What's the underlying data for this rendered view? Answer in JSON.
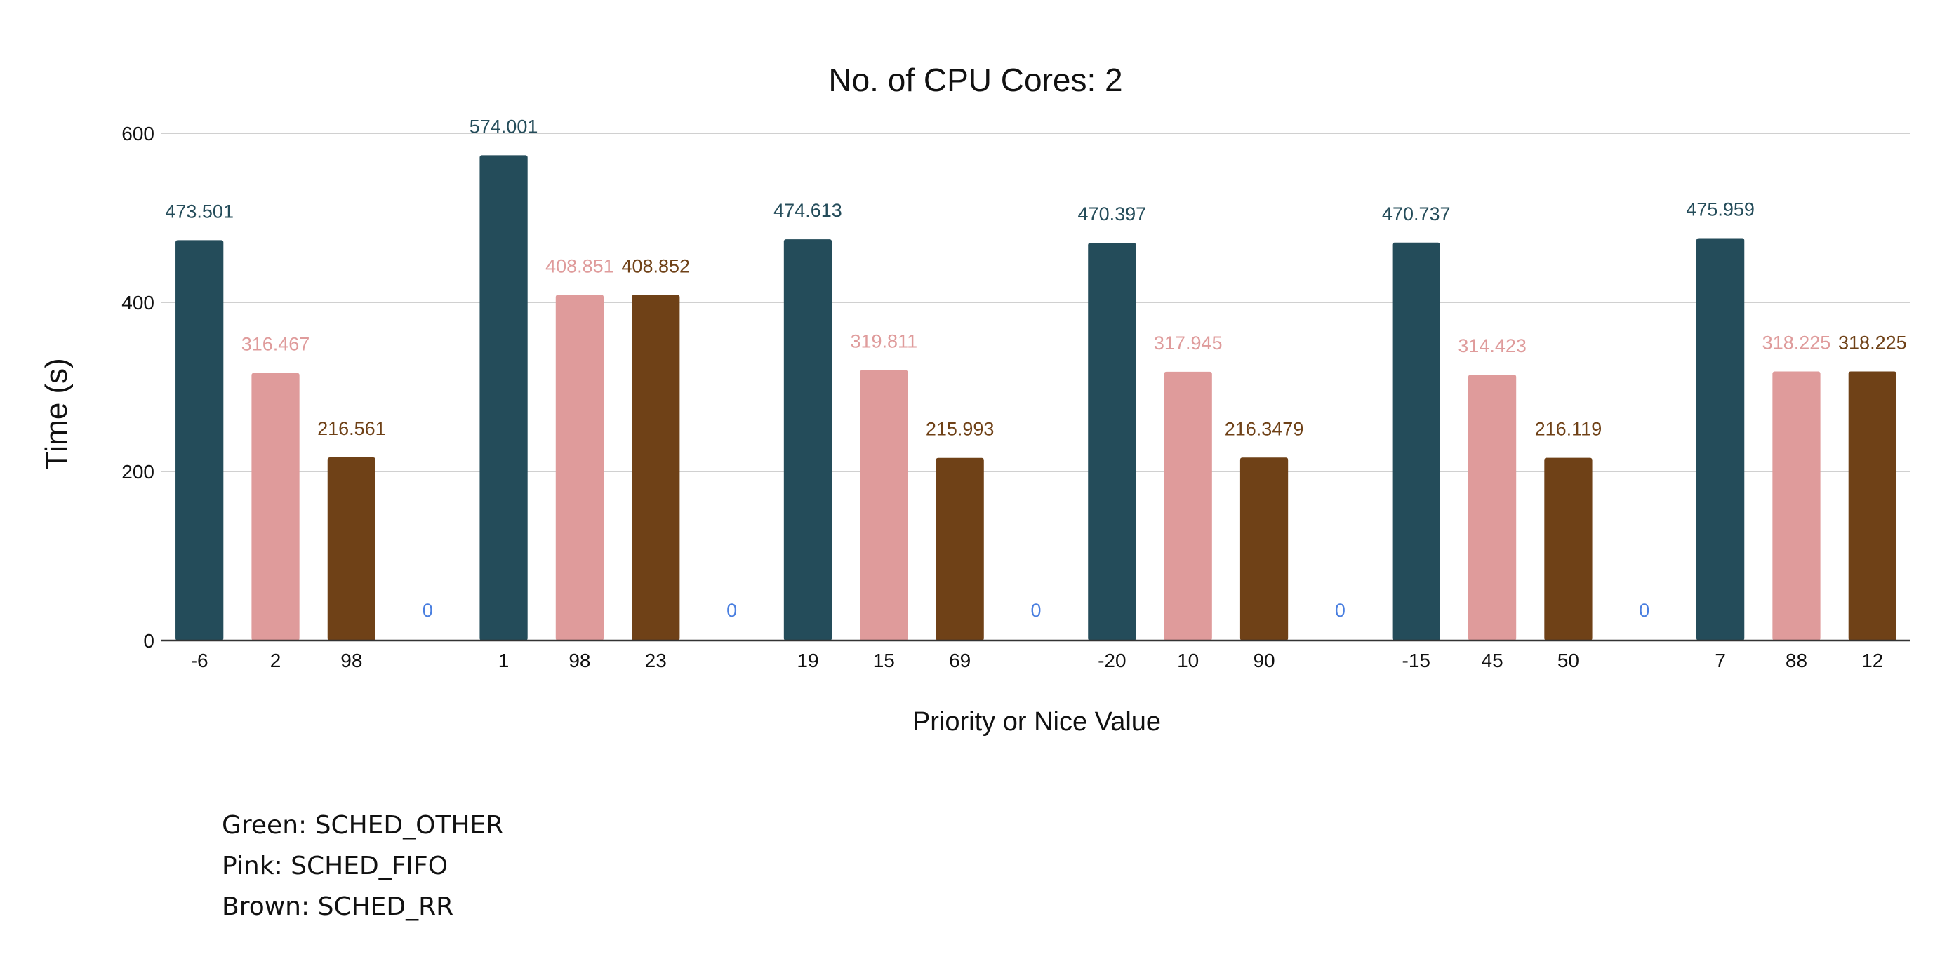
{
  "chart_data": {
    "type": "bar",
    "title": "No. of CPU Cores: 2",
    "xlabel": "Priority or Nice Value",
    "ylabel": "Time (s)",
    "ylim": [
      0,
      600
    ],
    "yticks": [
      0,
      200,
      400,
      600
    ],
    "grid": true,
    "colors": {
      "green": "#244c5a",
      "pink": "#df9b9b",
      "brown": "#6f4117",
      "zero_label": "#4a7fe0",
      "axis": "#333333",
      "grid": "#d0d0d0",
      "text": "#111111"
    },
    "series_colors": [
      "#244c5a",
      "#df9b9b",
      "#6f4117"
    ],
    "label_colors": [
      "#244c5a",
      "#df9b9b",
      "#6f4117"
    ],
    "bars": [
      {
        "x": "-6",
        "value": 473.501,
        "label": "473.501",
        "series": 0
      },
      {
        "x": "2",
        "value": 316.467,
        "label": "316.467",
        "series": 1
      },
      {
        "x": "98",
        "value": 216.561,
        "label": "216.561",
        "series": 2
      },
      {
        "x": "",
        "value": 0,
        "label": "0",
        "series": 3
      },
      {
        "x": "1",
        "value": 574.001,
        "label": "574.001",
        "series": 0
      },
      {
        "x": "98",
        "value": 408.851,
        "label": "408.851",
        "series": 1
      },
      {
        "x": "23",
        "value": 408.852,
        "label": "408.852",
        "series": 2
      },
      {
        "x": "",
        "value": 0,
        "label": "0",
        "series": 3
      },
      {
        "x": "19",
        "value": 474.613,
        "label": "474.613",
        "series": 0
      },
      {
        "x": "15",
        "value": 319.811,
        "label": "319.811",
        "series": 1
      },
      {
        "x": "69",
        "value": 215.993,
        "label": "215.993",
        "series": 2
      },
      {
        "x": "",
        "value": 0,
        "label": "0",
        "series": 3
      },
      {
        "x": "-20",
        "value": 470.397,
        "label": "470.397",
        "series": 0
      },
      {
        "x": "10",
        "value": 317.945,
        "label": "317.945",
        "series": 1
      },
      {
        "x": "90",
        "value": 216.3479,
        "label": "216.3479",
        "series": 2
      },
      {
        "x": "",
        "value": 0,
        "label": "0",
        "series": 3
      },
      {
        "x": "-15",
        "value": 470.737,
        "label": "470.737",
        "series": 0
      },
      {
        "x": "45",
        "value": 314.423,
        "label": "314.423",
        "series": 1
      },
      {
        "x": "50",
        "value": 216.119,
        "label": "216.119",
        "series": 2
      },
      {
        "x": "",
        "value": 0,
        "label": "0",
        "series": 3
      },
      {
        "x": "7",
        "value": 475.959,
        "label": "475.959",
        "series": 0
      },
      {
        "x": "88",
        "value": 318.225,
        "label": "318.225",
        "series": 1
      },
      {
        "x": "12",
        "value": 318.225,
        "label": "318.225",
        "series": 2
      }
    ]
  },
  "legend_notes": [
    "Green: SCHED_OTHER",
    "Pink: SCHED_FIFO",
    "Brown: SCHED_RR"
  ]
}
